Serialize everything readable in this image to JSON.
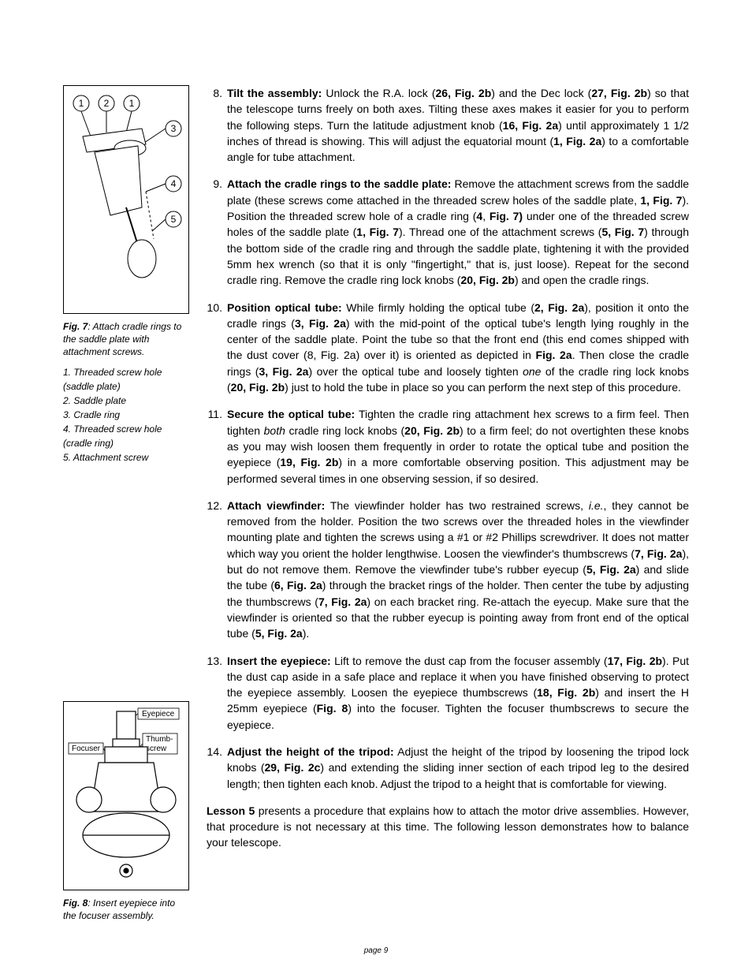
{
  "page_number_label": "page 9",
  "figures": {
    "fig7": {
      "label": "Fig. 7",
      "caption_rest": ": Attach cradle rings to the saddle plate with attachment screws.",
      "legend": [
        "1. Threaded screw hole (saddle plate)",
        "2. Saddle plate",
        "3. Cradle ring",
        "4. Threaded screw hole (cradle ring)",
        "5. Attachment screw"
      ],
      "callouts": [
        "1",
        "2",
        "1",
        "3",
        "4",
        "5"
      ],
      "diagram_labels": []
    },
    "fig8": {
      "label": "Fig. 8",
      "caption_rest": ": Insert eyepiece into the focuser assembly.",
      "diagram_labels": {
        "eyepiece": "Eyepiece",
        "thumbscrew_l1": "Thumb-",
        "thumbscrew_l2": "screw",
        "focuser": "Focuser"
      }
    }
  },
  "steps": [
    {
      "num": "8.",
      "runs": [
        {
          "t": "Tilt the assembly:",
          "b": true
        },
        {
          "t": " Unlock the R.A. lock ("
        },
        {
          "t": "26, Fig. 2b",
          "b": true
        },
        {
          "t": ") and the Dec lock ("
        },
        {
          "t": "27, Fig. 2b",
          "b": true
        },
        {
          "t": ") so that the telescope turns freely on both axes. Tilting these axes makes it easier for you to perform the following steps. Turn the latitude adjustment knob ("
        },
        {
          "t": "16, Fig. 2a",
          "b": true
        },
        {
          "t": ") until approximately 1 1/2 inches of thread is showing.  This will adjust the equatorial mount ("
        },
        {
          "t": "1, Fig. 2a",
          "b": true
        },
        {
          "t": ") to a comfortable angle for tube attachment."
        }
      ]
    },
    {
      "num": "9.",
      "runs": [
        {
          "t": "Attach the cradle rings to the saddle plate:",
          "b": true
        },
        {
          "t": " Remove the attachment screws from the saddle plate (these screws come attached in the threaded screw holes of the saddle plate, "
        },
        {
          "t": "1, Fig. 7",
          "b": true
        },
        {
          "t": "). Position the threaded screw hole of a cradle ring ("
        },
        {
          "t": "4",
          "b": true
        },
        {
          "t": ", "
        },
        {
          "t": "Fig. 7)",
          "b": true
        },
        {
          "t": " under one of the threaded screw holes of the saddle plate ("
        },
        {
          "t": "1, Fig. 7",
          "b": true
        },
        {
          "t": "). Thread one of the attachment screws ("
        },
        {
          "t": "5, Fig. 7",
          "b": true
        },
        {
          "t": ") through the bottom side of the cradle ring and through the saddle plate, tightening it with the provided 5mm hex wrench (so that it is only \"fingertight,\" that is, just loose). Repeat for the second cradle ring. Remove the cradle ring lock knobs ("
        },
        {
          "t": "20, Fig. 2b",
          "b": true
        },
        {
          "t": ") and open the cradle rings."
        }
      ]
    },
    {
      "num": "10.",
      "runs": [
        {
          "t": "Position optical tube:",
          "b": true
        },
        {
          "t": " While firmly holding the optical tube ("
        },
        {
          "t": "2, Fig. 2a",
          "b": true
        },
        {
          "t": "), position it onto the cradle rings ("
        },
        {
          "t": "3, Fig. 2a",
          "b": true
        },
        {
          "t": ") with the mid-point of the optical tube's length lying roughly in the center of the saddle plate. Point the tube so that the front end (this end comes shipped with the dust cover (8, Fig. 2a) over it) is oriented as depicted in "
        },
        {
          "t": "Fig. 2a",
          "b": true
        },
        {
          "t": ". Then close the cradle rings ("
        },
        {
          "t": "3, Fig. 2a",
          "b": true
        },
        {
          "t": ") over the optical tube and loosely tighten "
        },
        {
          "t": "one",
          "i": true
        },
        {
          "t": " of the cradle ring lock knobs ("
        },
        {
          "t": "20, Fig. 2b",
          "b": true
        },
        {
          "t": ") just to hold the tube in place so you can perform the next step of this procedure."
        }
      ]
    },
    {
      "num": "11.",
      "runs": [
        {
          "t": "Secure the optical tube:",
          "b": true
        },
        {
          "t": " Tighten the cradle ring attachment hex screws to a firm feel. Then tighten "
        },
        {
          "t": "both",
          "i": true
        },
        {
          "t": " cradle ring lock knobs ("
        },
        {
          "t": "20, Fig. 2b",
          "b": true
        },
        {
          "t": ") to a firm feel; do not overtighten these knobs as you may wish loosen them frequently in order to rotate the optical tube and position the eyepiece ("
        },
        {
          "t": "19, Fig. 2b",
          "b": true
        },
        {
          "t": ") in a more comfortable observing position. This adjustment may be performed several times in one observing session, if so desired."
        }
      ]
    },
    {
      "num": "12.",
      "runs": [
        {
          "t": "Attach viewfinder:",
          "b": true
        },
        {
          "t": " The viewfinder holder has two restrained screws, "
        },
        {
          "t": "i.e.",
          "i": true
        },
        {
          "t": ", they cannot be removed from the holder. Position the two screws over the threaded holes in the viewfinder mounting plate and tighten the screws using a #1 or #2 Phillips screwdriver. It does not matter which way you orient the holder lengthwise. Loosen the viewfinder's thumbscrews ("
        },
        {
          "t": "7, Fig. 2a",
          "b": true
        },
        {
          "t": "), but do not remove them. Remove the viewfinder tube's rubber eyecup ("
        },
        {
          "t": "5, Fig. 2a",
          "b": true
        },
        {
          "t": ") and slide the tube ("
        },
        {
          "t": "6, Fig. 2a",
          "b": true
        },
        {
          "t": ") through the bracket rings of the holder. Then center the tube by adjusting the thumbscrews ("
        },
        {
          "t": "7, Fig. 2a",
          "b": true
        },
        {
          "t": ") on each bracket ring. Re-attach the eyecup. Make sure that the viewfinder is oriented so that the rubber eyecup is pointing away from front end of the optical tube ("
        },
        {
          "t": "5, Fig. 2a",
          "b": true
        },
        {
          "t": ")."
        }
      ]
    },
    {
      "num": "13.",
      "runs": [
        {
          "t": "Insert the eyepiece:",
          "b": true
        },
        {
          "t": " Lift to remove the dust cap from the focuser assembly ("
        },
        {
          "t": "17, Fig. 2b",
          "b": true
        },
        {
          "t": "). Put the dust cap aside in a safe place and replace it when you have finished observing to protect the eyepiece assembly. Loosen the eyepiece thumbscrews ("
        },
        {
          "t": "18, Fig. 2b",
          "b": true
        },
        {
          "t": ") and insert the H 25mm eyepiece ("
        },
        {
          "t": "Fig. 8",
          "b": true
        },
        {
          "t": ") into the focuser. Tighten the focuser thumbscrews to secure the eyepiece."
        }
      ]
    },
    {
      "num": "14.",
      "runs": [
        {
          "t": "Adjust the height of the tripod:",
          "b": true
        },
        {
          "t": " Adjust the height of the tripod by loosening the tripod lock knobs ("
        },
        {
          "t": "29, Fig. 2c",
          "b": true
        },
        {
          "t": ") and extending the sliding inner section of each tripod leg to the desired length; then tighten each knob. Adjust the tripod to a height that is comfortable for viewing."
        }
      ]
    }
  ],
  "closing": {
    "runs": [
      {
        "t": "Lesson 5",
        "b": true
      },
      {
        "t": " presents a procedure that explains how to attach the motor drive assemblies. However, that procedure is not necessary at this time. The following lesson demonstrates how to balance your telescope."
      }
    ]
  }
}
